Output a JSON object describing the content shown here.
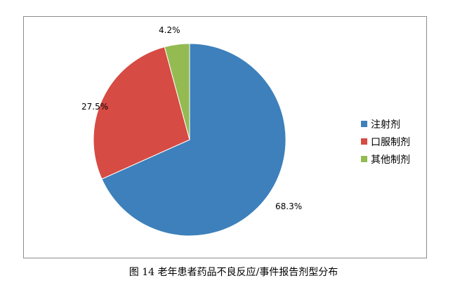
{
  "chart_data": {
    "type": "pie",
    "categories": [
      "注射剂",
      "口服制剂",
      "其他制剂"
    ],
    "values": [
      68.3,
      27.5,
      4.2
    ],
    "data_labels": [
      "68.3%",
      "27.5%",
      "4.2%"
    ],
    "colors": [
      "#3d80bb",
      "#d64b43",
      "#94bb52"
    ],
    "legend_placement": "right",
    "title": "",
    "start_angle_deg": 0,
    "direction": "clockwise"
  },
  "caption": "图 14 老年患者药品不良反应/事件报告剂型分布"
}
